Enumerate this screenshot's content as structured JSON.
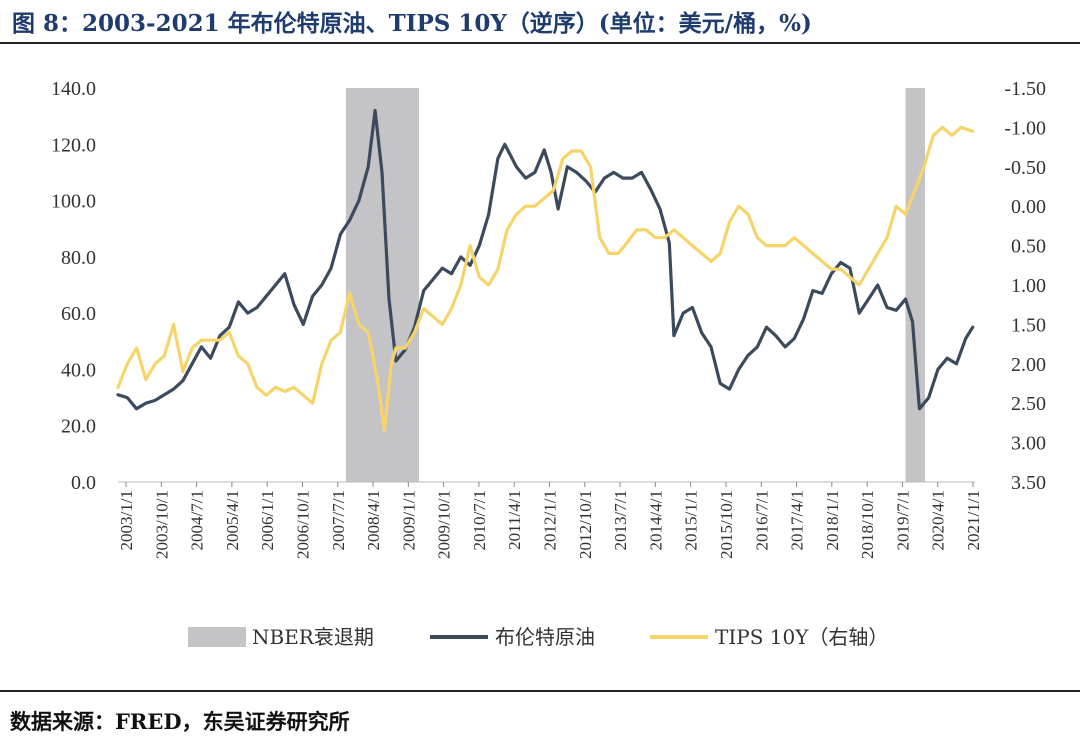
{
  "title": "图 8：2003-2021 年布伦特原油、TIPS 10Y（逆序）(单位：美元/桶，%)",
  "source": "数据来源：FRED，东吴证券研究所",
  "colors": {
    "oil": "#3b4a5c",
    "tips": "#f7d469",
    "recession": "#c4c4c6",
    "title": "#1f3c6e"
  },
  "chart_data": {
    "type": "line",
    "left_axis": {
      "min": 0,
      "max": 140,
      "ticks": [
        "0.0",
        "20.0",
        "40.0",
        "60.0",
        "80.0",
        "100.0",
        "120.0",
        "140.0"
      ]
    },
    "right_axis": {
      "min": -1.5,
      "max": 3.5,
      "inverted": true,
      "ticks": [
        "-1.50",
        "-1.00",
        "-0.50",
        "0.00",
        "0.50",
        "1.00",
        "1.50",
        "2.00",
        "2.50",
        "3.00",
        "3.50"
      ]
    },
    "x_range": [
      2003.0,
      2021.5
    ],
    "x_ticks": [
      "2003/1/1",
      "2003/10/1",
      "2004/7/1",
      "2005/4/1",
      "2006/1/1",
      "2006/10/1",
      "2007/7/1",
      "2008/4/1",
      "2009/1/1",
      "2009/10/1",
      "2010/7/1",
      "2011/4/1",
      "2012/1/1",
      "2012/10/1",
      "2013/7/1",
      "2014/4/1",
      "2015/1/1",
      "2015/10/1",
      "2016/7/1",
      "2017/4/1",
      "2018/1/1",
      "2018/10/1",
      "2019/7/1",
      "2020/4/1",
      "2021/1/1"
    ],
    "recessions": [
      [
        2007.92,
        2009.5
      ],
      [
        2020.0,
        2020.42
      ]
    ],
    "legend": [
      "NBER衰退期",
      "布伦特原油",
      "TIPS 10Y（右轴）"
    ],
    "series": [
      {
        "name": "布伦特原油",
        "axis": "left",
        "x": [
          2003.0,
          2003.2,
          2003.4,
          2003.6,
          2003.8,
          2004.0,
          2004.2,
          2004.4,
          2004.6,
          2004.8,
          2005.0,
          2005.2,
          2005.4,
          2005.6,
          2005.8,
          2006.0,
          2006.2,
          2006.4,
          2006.6,
          2006.8,
          2007.0,
          2007.2,
          2007.4,
          2007.6,
          2007.8,
          2008.0,
          2008.2,
          2008.4,
          2008.55,
          2008.7,
          2008.85,
          2009.0,
          2009.2,
          2009.4,
          2009.6,
          2009.8,
          2010.0,
          2010.2,
          2010.4,
          2010.6,
          2010.8,
          2011.0,
          2011.2,
          2011.35,
          2011.6,
          2011.8,
          2012.0,
          2012.2,
          2012.35,
          2012.5,
          2012.7,
          2012.9,
          2013.1,
          2013.3,
          2013.5,
          2013.7,
          2013.9,
          2014.1,
          2014.3,
          2014.5,
          2014.7,
          2014.9,
          2015.0,
          2015.2,
          2015.4,
          2015.6,
          2015.8,
          2016.0,
          2016.2,
          2016.4,
          2016.6,
          2016.8,
          2017.0,
          2017.2,
          2017.4,
          2017.6,
          2017.8,
          2018.0,
          2018.2,
          2018.4,
          2018.6,
          2018.8,
          2019.0,
          2019.2,
          2019.4,
          2019.6,
          2019.8,
          2020.0,
          2020.15,
          2020.3,
          2020.5,
          2020.7,
          2020.9,
          2021.1,
          2021.3,
          2021.45
        ],
        "values": [
          31,
          30,
          26,
          28,
          29,
          31,
          33,
          36,
          42,
          48,
          44,
          52,
          55,
          64,
          60,
          62,
          66,
          70,
          74,
          63,
          56,
          66,
          70,
          76,
          88,
          93,
          100,
          112,
          132,
          110,
          65,
          43,
          47,
          55,
          68,
          72,
          76,
          74,
          80,
          77,
          84,
          95,
          115,
          120,
          112,
          108,
          110,
          118,
          110,
          97,
          112,
          110,
          107,
          103,
          108,
          110,
          108,
          108,
          110,
          104,
          97,
          85,
          52,
          60,
          62,
          53,
          48,
          35,
          33,
          40,
          45,
          48,
          55,
          52,
          48,
          51,
          58,
          68,
          67,
          74,
          78,
          76,
          60,
          65,
          70,
          62,
          61,
          65,
          57,
          26,
          30,
          40,
          44,
          42,
          51,
          55
        ]
      },
      {
        "name": "TIPS 10Y（右轴）",
        "axis": "right",
        "x": [
          2003.0,
          2003.2,
          2003.4,
          2003.6,
          2003.8,
          2004.0,
          2004.2,
          2004.4,
          2004.6,
          2004.8,
          2005.0,
          2005.2,
          2005.4,
          2005.6,
          2005.8,
          2006.0,
          2006.2,
          2006.4,
          2006.6,
          2006.8,
          2007.0,
          2007.2,
          2007.4,
          2007.6,
          2007.8,
          2008.0,
          2008.2,
          2008.4,
          2008.6,
          2008.75,
          2008.9,
          2009.0,
          2009.2,
          2009.4,
          2009.6,
          2009.8,
          2010.0,
          2010.2,
          2010.4,
          2010.6,
          2010.8,
          2011.0,
          2011.2,
          2011.4,
          2011.6,
          2011.8,
          2012.0,
          2012.2,
          2012.4,
          2012.6,
          2012.8,
          2013.0,
          2013.2,
          2013.4,
          2013.6,
          2013.8,
          2014.0,
          2014.2,
          2014.4,
          2014.6,
          2014.8,
          2015.0,
          2015.2,
          2015.4,
          2015.6,
          2015.8,
          2016.0,
          2016.2,
          2016.4,
          2016.6,
          2016.8,
          2017.0,
          2017.2,
          2017.4,
          2017.6,
          2017.8,
          2018.0,
          2018.2,
          2018.4,
          2018.6,
          2018.8,
          2019.0,
          2019.2,
          2019.4,
          2019.6,
          2019.8,
          2020.0,
          2020.2,
          2020.4,
          2020.6,
          2020.8,
          2021.0,
          2021.2,
          2021.45
        ],
        "values": [
          2.3,
          2.0,
          1.8,
          2.2,
          2.0,
          1.9,
          1.5,
          2.1,
          1.8,
          1.7,
          1.7,
          1.7,
          1.6,
          1.9,
          2.0,
          2.3,
          2.4,
          2.3,
          2.35,
          2.3,
          2.4,
          2.5,
          2.0,
          1.7,
          1.6,
          1.1,
          1.5,
          1.6,
          2.2,
          2.85,
          2.0,
          1.8,
          1.8,
          1.6,
          1.3,
          1.4,
          1.5,
          1.3,
          1.0,
          0.5,
          0.9,
          1.0,
          0.8,
          0.3,
          0.1,
          0.0,
          0.0,
          -0.1,
          -0.2,
          -0.6,
          -0.7,
          -0.7,
          -0.5,
          0.4,
          0.6,
          0.6,
          0.45,
          0.3,
          0.3,
          0.4,
          0.4,
          0.3,
          0.4,
          0.5,
          0.6,
          0.7,
          0.6,
          0.2,
          0.0,
          0.1,
          0.4,
          0.5,
          0.5,
          0.5,
          0.4,
          0.5,
          0.6,
          0.7,
          0.8,
          0.8,
          0.9,
          1.0,
          0.8,
          0.6,
          0.4,
          0.0,
          0.1,
          -0.2,
          -0.5,
          -0.9,
          -1.0,
          -0.9,
          -1.0,
          -0.95
        ]
      }
    ]
  }
}
